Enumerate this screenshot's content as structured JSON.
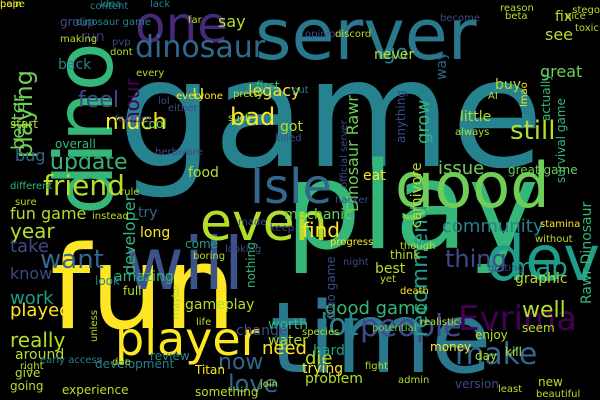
{
  "colors": {
    "background": "#000000",
    "palette": [
      "#440154",
      "#482878",
      "#3e4a89",
      "#31688e",
      "#26828e",
      "#1f9e89",
      "#35b779",
      "#6ece58",
      "#b5de2b",
      "#fde725"
    ]
  },
  "words": [
    {
      "text": "game",
      "color": "#26828e"
    },
    {
      "text": "play",
      "color": "#35b779"
    },
    {
      "text": "fun",
      "color": "#fde725"
    },
    {
      "text": "time",
      "color": "#2a788e"
    },
    {
      "text": "server",
      "color": "#2a788e"
    },
    {
      "text": "dino",
      "color": "#35b779"
    },
    {
      "text": "will",
      "color": "#3b528b"
    },
    {
      "text": "good",
      "color": "#6ece58"
    },
    {
      "text": "player",
      "color": "#fde725"
    },
    {
      "text": "even",
      "color": "#b5de2b"
    },
    {
      "text": "Isle",
      "color": "#31688e"
    },
    {
      "text": "dev",
      "color": "#1f9e89"
    },
    {
      "text": "one",
      "color": "#482878"
    },
    {
      "text": "dinosaur",
      "color": "#31688e"
    },
    {
      "text": "people",
      "color": "#3e4a89"
    },
    {
      "text": "Evrima",
      "color": "#440154"
    },
    {
      "text": "make",
      "color": "#31688e"
    },
    {
      "text": "friend",
      "color": "#b5de2b"
    },
    {
      "text": "update",
      "color": "#35b779"
    },
    {
      "text": "playing",
      "color": "#6ece58"
    },
    {
      "text": "still",
      "color": "#b5de2b"
    },
    {
      "text": "recommend",
      "color": "#1f9e89"
    },
    {
      "text": "map",
      "color": "#1f9e89"
    },
    {
      "text": "lot",
      "color": "#26828e"
    },
    {
      "text": "love",
      "color": "#31688e"
    },
    {
      "text": "want",
      "color": "#31688e"
    },
    {
      "text": "thing",
      "color": "#3e4a89"
    },
    {
      "text": "Dinosaur Rawr",
      "color": "#6ece58"
    },
    {
      "text": "hour",
      "color": "#440154"
    },
    {
      "text": "work",
      "color": "#1f9e89"
    },
    {
      "text": "played",
      "color": "#fde725"
    },
    {
      "text": "really",
      "color": "#b5de2b"
    },
    {
      "text": "good game",
      "color": "#35b779"
    },
    {
      "text": "now",
      "color": "#31688e"
    },
    {
      "text": "need",
      "color": "#fde725"
    },
    {
      "text": "feel",
      "color": "#3e4a89"
    },
    {
      "text": "much",
      "color": "#fde725"
    },
    {
      "text": "better",
      "color": "#6ece58"
    },
    {
      "text": "bad",
      "color": "#fde725"
    },
    {
      "text": "legacy",
      "color": "#fde725"
    },
    {
      "text": "developer",
      "color": "#35b779"
    },
    {
      "text": "find",
      "color": "#fde725"
    },
    {
      "text": "well",
      "color": "#b5de2b"
    },
    {
      "text": "go",
      "color": "#26828e"
    },
    {
      "text": "see",
      "color": "#b5de2b"
    },
    {
      "text": "great",
      "color": "#6ece58"
    },
    {
      "text": "community",
      "color": "#26828e"
    },
    {
      "text": "fun game",
      "color": "#b5de2b"
    },
    {
      "text": "year",
      "color": "#b5de2b"
    },
    {
      "text": "take",
      "color": "#3e4a89"
    },
    {
      "text": "know",
      "color": "#3e4a89"
    },
    {
      "text": "issue",
      "color": "#6ece58"
    },
    {
      "text": "grow",
      "color": "#35b779"
    },
    {
      "text": "die",
      "color": "#b5de2b"
    },
    {
      "text": "first",
      "color": "#35b779"
    },
    {
      "text": "say",
      "color": "#b5de2b"
    },
    {
      "text": "run",
      "color": "#482878"
    },
    {
      "text": "u",
      "color": "#b5de2b"
    },
    {
      "text": "bug",
      "color": "#31688e"
    },
    {
      "text": "gameplay",
      "color": "#b5de2b"
    },
    {
      "text": "food",
      "color": "#b5de2b"
    },
    {
      "text": "eat",
      "color": "#fde725"
    },
    {
      "text": "got",
      "color": "#b5de2b"
    },
    {
      "text": "worth",
      "color": "#35b779"
    },
    {
      "text": "water",
      "color": "#b5de2b"
    },
    {
      "text": "Rawr Dinosaur",
      "color": "#35b779"
    },
    {
      "text": "mechanic",
      "color": "#6ece58"
    },
    {
      "text": "trying",
      "color": "#fde725"
    },
    {
      "text": "around",
      "color": "#b5de2b"
    },
    {
      "text": "little",
      "color": "#b5de2b"
    },
    {
      "text": "fix",
      "color": "#b5de2b"
    },
    {
      "text": "never",
      "color": "#b5de2b"
    },
    {
      "text": "back",
      "color": "#26828e"
    },
    {
      "text": "amazing",
      "color": "#35b779"
    },
    {
      "text": "look",
      "color": "#26828e"
    },
    {
      "text": "problem",
      "color": "#b5de2b"
    },
    {
      "text": "review",
      "color": "#26828e"
    },
    {
      "text": "come",
      "color": "#1f9e89"
    },
    {
      "text": "change",
      "color": "#3e4a89"
    },
    {
      "text": "hard",
      "color": "#1f9e89"
    },
    {
      "text": "best",
      "color": "#b5de2b"
    },
    {
      "text": "think",
      "color": "#b5de2b"
    },
    {
      "text": "graphic",
      "color": "#b5de2b"
    },
    {
      "text": "enjoy",
      "color": "#b5de2b"
    },
    {
      "text": "money",
      "color": "#fde725"
    },
    {
      "text": "day",
      "color": "#b5de2b"
    },
    {
      "text": "seem",
      "color": "#b5de2b"
    },
    {
      "text": "buy",
      "color": "#b5de2b"
    },
    {
      "text": "carnivore",
      "color": "#b5de2b"
    },
    {
      "text": "give",
      "color": "#b5de2b"
    },
    {
      "text": "going",
      "color": "#b5de2b"
    },
    {
      "text": "experience",
      "color": "#b5de2b"
    },
    {
      "text": "something",
      "color": "#b5de2b"
    },
    {
      "text": "full",
      "color": "#b5de2b"
    },
    {
      "text": "cool",
      "color": "#6ece58"
    },
    {
      "text": "try",
      "color": "#31688e"
    },
    {
      "text": "long",
      "color": "#fde725"
    },
    {
      "text": "overall",
      "color": "#35b779"
    },
    {
      "text": "start",
      "color": "#b5de2b"
    },
    {
      "text": "nothing",
      "color": "#35b779"
    },
    {
      "text": "development",
      "color": "#26828e"
    },
    {
      "text": "way",
      "color": "#31688e"
    },
    {
      "text": "anything",
      "color": "#3e4a89"
    },
    {
      "text": "great game",
      "color": "#6ece58"
    },
    {
      "text": "dino game",
      "color": "#3e4a89"
    },
    {
      "text": "Titan",
      "color": "#fde725"
    },
    {
      "text": "kill",
      "color": "#b5de2b"
    },
    {
      "text": "new",
      "color": "#b5de2b"
    },
    {
      "text": "version",
      "color": "#3e4a89"
    },
    {
      "text": "actually",
      "color": "#35b779"
    },
    {
      "text": "survival game",
      "color": "#35b779"
    },
    {
      "text": "group",
      "color": "#3e4a89"
    },
    {
      "text": "different",
      "color": "#35b779"
    },
    {
      "text": "idea",
      "color": "#26828e"
    },
    {
      "text": "lack",
      "color": "#26828e"
    },
    {
      "text": "every",
      "color": "#b5de2b"
    },
    {
      "text": "pretty",
      "color": "#b5de2b"
    },
    {
      "text": "everyone",
      "color": "#fde725"
    },
    {
      "text": "put",
      "color": "#26828e"
    },
    {
      "text": "suck",
      "color": "#b5de2b"
    },
    {
      "text": "killed",
      "color": "#3e4a89"
    },
    {
      "text": "feature",
      "color": "#3e4a89"
    },
    {
      "text": "herbivore",
      "color": "#3e4a89"
    },
    {
      "text": "rule",
      "color": "#b5de2b"
    },
    {
      "text": "opinion",
      "color": "#3e4a89"
    },
    {
      "text": "official server",
      "color": "#3e4a89"
    },
    {
      "text": "discord",
      "color": "#b5de2b"
    },
    {
      "text": "become",
      "color": "#3e4a89"
    },
    {
      "text": "beta",
      "color": "#b5de2b"
    },
    {
      "text": "nice",
      "color": "#b5de2b"
    },
    {
      "text": "toxic",
      "color": "#b5de2b"
    },
    {
      "text": "content",
      "color": "#26828e"
    },
    {
      "text": "dinosaur game",
      "color": "#26828e"
    },
    {
      "text": "pvp",
      "color": "#3e4a89"
    },
    {
      "text": "making",
      "color": "#b5de2b"
    },
    {
      "text": "far",
      "color": "#b5de2b"
    },
    {
      "text": "dont",
      "color": "#b5de2b"
    },
    {
      "text": "lol",
      "color": "#3e4a89"
    },
    {
      "text": "made",
      "color": "#3e4a89"
    },
    {
      "text": "stamina",
      "color": "#fde725"
    },
    {
      "text": "without",
      "color": "#b5de2b"
    },
    {
      "text": "though",
      "color": "#b5de2b"
    },
    {
      "text": "progress",
      "color": "#fde725"
    },
    {
      "text": "night",
      "color": "#3e4a89"
    },
    {
      "text": "getting",
      "color": "#3e4a89"
    },
    {
      "text": "yet",
      "color": "#b5de2b"
    },
    {
      "text": "death",
      "color": "#fde725"
    },
    {
      "text": "realistic",
      "color": "#b5de2b"
    },
    {
      "text": "potential",
      "color": "#6ece58"
    },
    {
      "text": "species",
      "color": "#b5de2b"
    },
    {
      "text": "fight",
      "color": "#b5de2b"
    },
    {
      "text": "admin",
      "color": "#b5de2b"
    },
    {
      "text": "due",
      "color": "#b5de2b"
    },
    {
      "text": "early access",
      "color": "#26828e"
    },
    {
      "text": "unless",
      "color": "#b5de2b"
    },
    {
      "text": "maybe",
      "color": "#b5de2b"
    },
    {
      "text": "join",
      "color": "#b5de2b"
    },
    {
      "text": "life",
      "color": "#b5de2b"
    },
    {
      "text": "boring",
      "color": "#b5de2b"
    },
    {
      "text": "looking",
      "color": "#3e4a89"
    },
    {
      "text": "keep",
      "color": "#3e4a89"
    },
    {
      "text": "either",
      "color": "#3e4a89"
    },
    {
      "text": "right",
      "color": "#b5de2b"
    },
    {
      "text": "sure",
      "color": "#b5de2b"
    },
    {
      "text": "always",
      "color": "#b5de2b"
    },
    {
      "text": "least",
      "color": "#b5de2b"
    },
    {
      "text": "beautiful",
      "color": "#b5de2b"
    },
    {
      "text": "instead",
      "color": "#b5de2b"
    },
    {
      "text": "stego",
      "color": "#b5de2b"
    },
    {
      "text": "hacker",
      "color": "#3e4a89"
    },
    {
      "text": "AI",
      "color": "#b5de2b"
    },
    {
      "text": "reason",
      "color": "#b5de2b"
    },
    {
      "text": "lmao",
      "color": "#fde725"
    },
    {
      "text": "hope",
      "color": "#b5de2b"
    },
    {
      "text": "pain",
      "color": "#fde725"
    }
  ]
}
